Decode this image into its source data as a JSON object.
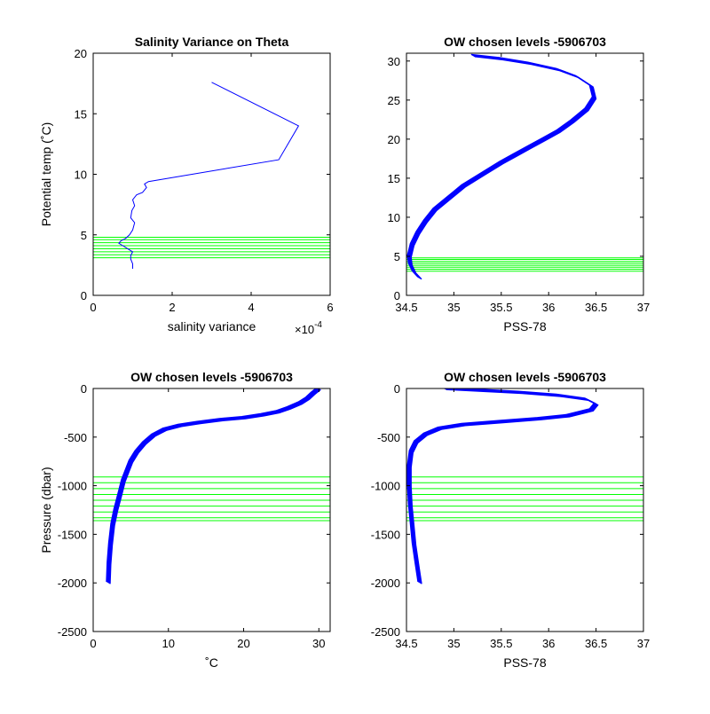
{
  "figure": {
    "background": "#ffffff"
  },
  "colors": {
    "profile": "#0000ff",
    "levels": "#00ff00",
    "axes": "#000000"
  },
  "chart_data": [
    {
      "type": "line",
      "title": "Salinity Variance on Theta",
      "xlabel": "salinity variance",
      "ylabel": "Potential temp (˚C)",
      "x_multiplier": "×10",
      "x_multiplier_exp": "-4",
      "xlim": [
        0,
        6
      ],
      "ylim": [
        0,
        20
      ],
      "xticks": [
        0,
        2,
        4,
        6
      ],
      "yticks": [
        0,
        5,
        10,
        15,
        20
      ],
      "series": [
        {
          "x": [
            1.0,
            1.0,
            0.95,
            0.95,
            1.0,
            0.85,
            0.75,
            0.65,
            0.7,
            0.82,
            0.92,
            1.0,
            1.05,
            0.95,
            0.98,
            1.05,
            1.0,
            1.1,
            1.25,
            1.35,
            1.3,
            1.4,
            4.7,
            5.2,
            3.0
          ],
          "y": [
            2.2,
            2.6,
            3.0,
            3.3,
            3.6,
            3.9,
            4.1,
            4.3,
            4.5,
            4.7,
            5.0,
            5.4,
            6.0,
            6.4,
            7.0,
            7.4,
            7.9,
            8.3,
            8.5,
            8.9,
            9.2,
            9.4,
            11.2,
            14.0,
            17.6
          ]
        }
      ],
      "levels_y": [
        3.1,
        3.35,
        3.6,
        3.85,
        4.1,
        4.35,
        4.6,
        4.8
      ]
    },
    {
      "type": "line",
      "title": "OW chosen levels -5906703",
      "xlabel": "PSS-78",
      "ylabel": "",
      "xlim": [
        34.5,
        37
      ],
      "ylim": [
        0,
        31
      ],
      "xticks": [
        34.5,
        35,
        35.5,
        36,
        36.5,
        37
      ],
      "yticks": [
        0,
        5,
        10,
        15,
        20,
        25,
        30
      ],
      "series": [
        {
          "x": [
            34.64,
            34.58,
            34.54,
            34.53,
            34.56,
            34.62,
            34.7,
            34.8,
            34.95,
            35.1,
            35.3,
            35.5,
            35.65,
            35.8,
            35.95,
            36.1,
            36.25,
            36.4,
            36.48,
            36.45,
            36.3,
            36.1,
            35.8,
            35.5,
            35.2
          ],
          "y": [
            2.2,
            3.0,
            4.0,
            5.0,
            6.5,
            8.0,
            9.5,
            11.0,
            12.5,
            14.0,
            15.5,
            17.0,
            18.0,
            19.0,
            20.0,
            21.0,
            22.3,
            23.8,
            25.3,
            26.8,
            28.0,
            28.9,
            29.7,
            30.3,
            30.7
          ]
        }
      ],
      "levels_y": [
        3.1,
        3.35,
        3.6,
        3.85,
        4.1,
        4.35,
        4.6,
        4.8
      ]
    },
    {
      "type": "line",
      "title": "OW chosen levels -5906703",
      "xlabel": "˚C",
      "ylabel": "Pressure (dbar)",
      "xlim": [
        0,
        31.5
      ],
      "ylim": [
        -2500,
        0
      ],
      "xticks": [
        0,
        10,
        20,
        30
      ],
      "yticks": [
        -2500,
        -2000,
        -1500,
        -1000,
        -500,
        0
      ],
      "series": [
        {
          "x": [
            2.0,
            2.1,
            2.3,
            2.6,
            3.0,
            3.5,
            4.0,
            4.5,
            5.0,
            5.8,
            6.8,
            8.0,
            9.5,
            11.5,
            14.0,
            17.0,
            20.0,
            22.5,
            24.5,
            26.0,
            27.5,
            28.5,
            29.2,
            30.0
          ],
          "y": [
            -2000,
            -1800,
            -1600,
            -1400,
            -1250,
            -1100,
            -950,
            -850,
            -750,
            -650,
            -560,
            -480,
            -420,
            -380,
            -350,
            -320,
            -300,
            -270,
            -240,
            -200,
            -150,
            -100,
            -50,
            0
          ]
        }
      ],
      "levels_y": [
        -910,
        -970,
        -1030,
        -1090,
        -1150,
        -1210,
        -1270,
        -1330,
        -1360
      ]
    },
    {
      "type": "line",
      "title": "OW chosen levels -5906703",
      "xlabel": "PSS-78",
      "ylabel": "",
      "xlim": [
        34.5,
        37
      ],
      "ylim": [
        -2500,
        0
      ],
      "xticks": [
        34.5,
        35,
        35.5,
        36,
        36.5,
        37
      ],
      "yticks": [
        -2500,
        -2000,
        -1500,
        -1000,
        -500,
        0
      ],
      "series": [
        {
          "x": [
            34.64,
            34.61,
            34.58,
            34.56,
            34.54,
            34.53,
            34.53,
            34.55,
            34.6,
            34.7,
            34.85,
            35.1,
            35.5,
            35.9,
            36.2,
            36.45,
            36.5,
            36.4,
            36.1,
            35.7,
            35.2,
            34.9
          ],
          "y": [
            -2000,
            -1800,
            -1600,
            -1400,
            -1200,
            -1000,
            -800,
            -650,
            -550,
            -470,
            -410,
            -370,
            -340,
            -310,
            -280,
            -220,
            -160,
            -110,
            -70,
            -40,
            -15,
            0
          ]
        }
      ],
      "levels_y": [
        -910,
        -970,
        -1030,
        -1090,
        -1150,
        -1210,
        -1270,
        -1330,
        -1360
      ]
    }
  ]
}
